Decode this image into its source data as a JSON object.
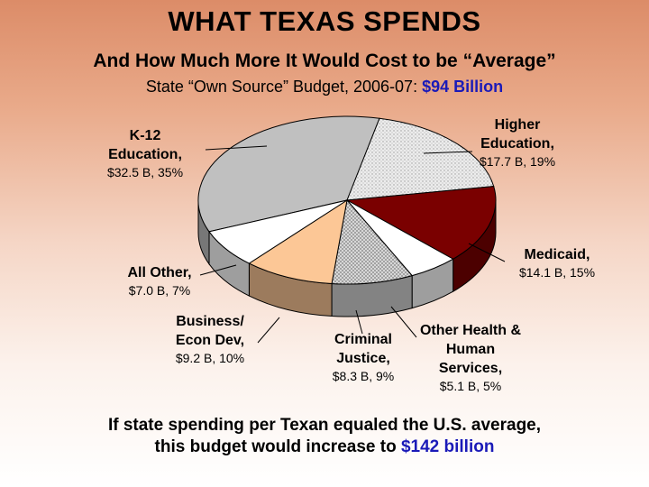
{
  "slide": {
    "title": "WHAT TEXAS SPENDS",
    "subtitle": "And How Much More It Would Cost to be “Average”",
    "budget_prefix": "State “Own Source” Budget, 2006-07: ",
    "budget_amount": "$94 Billion",
    "footer_line1": "If state spending per Texan equaled the U.S. average,",
    "footer_line2_prefix": "this budget would increase to ",
    "footer_line2_amount": "$142 billion",
    "accent_color": "#1a1ab8"
  },
  "chart_data": {
    "type": "pie",
    "unit": "$ Billion",
    "slices": [
      {
        "name": "K-12 Education,",
        "value": 32.5,
        "percent": 35,
        "value_text": "$32.5 B, 35%",
        "color": "#c0c0c0",
        "pattern": "none"
      },
      {
        "name": "Higher Education,",
        "value": 17.7,
        "percent": 19,
        "value_text": "$17.7 B, 19%",
        "color": "#e6e6e6",
        "pattern": "dots"
      },
      {
        "name": "Medicaid,",
        "value": 14.1,
        "percent": 15,
        "value_text": "$14.1 B, 15%",
        "color": "#7a0000",
        "pattern": "none"
      },
      {
        "name": "Other Health & Human Services,",
        "value": 5.1,
        "percent": 5,
        "value_text": "$5.1 B, 5%",
        "color": "#ffffff",
        "pattern": "none"
      },
      {
        "name": "Criminal Justice,",
        "value": 8.3,
        "percent": 9,
        "value_text": "$8.3 B, 9%",
        "color": "#d4d4d4",
        "pattern": "crosshatch"
      },
      {
        "name": "Business/ Econ Dev,",
        "value": 9.2,
        "percent": 10,
        "value_text": "$9.2 B, 10%",
        "color": "#fcc796",
        "pattern": "none"
      },
      {
        "name": "All Other,",
        "value": 7.0,
        "percent": 7,
        "value_text": "$7.0 B, 7%",
        "color": "#ffffff",
        "pattern": "none"
      }
    ]
  }
}
